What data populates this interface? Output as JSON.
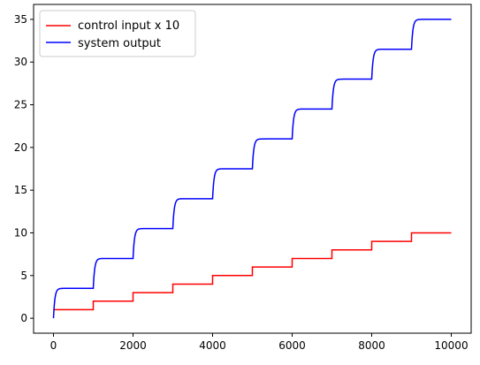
{
  "chart_data": {
    "type": "line",
    "title": "",
    "xlabel": "",
    "ylabel": "",
    "xlim": [
      -500,
      10500
    ],
    "ylim": [
      -1.75,
      36.75
    ],
    "xticks": [
      0,
      2000,
      4000,
      6000,
      8000,
      10000
    ],
    "xtick_labels": [
      "0",
      "2000",
      "4000",
      "6000",
      "8000",
      "10000"
    ],
    "yticks": [
      0,
      5,
      10,
      15,
      20,
      25,
      30,
      35
    ],
    "ytick_labels": [
      "0",
      "5",
      "10",
      "15",
      "20",
      "25",
      "30",
      "35"
    ],
    "grid": false,
    "legend_position": "upper-left",
    "series": [
      {
        "name": "control input x 10",
        "color": "#ff0000",
        "kind": "step",
        "x": [
          0,
          1000,
          2000,
          3000,
          4000,
          5000,
          6000,
          7000,
          8000,
          9000,
          10000
        ],
        "y": [
          1,
          2,
          3,
          4,
          5,
          6,
          7,
          8,
          9,
          10,
          10
        ]
      },
      {
        "name": "system output",
        "color": "#0000ff",
        "kind": "step-response",
        "x": [
          0,
          1000,
          2000,
          3000,
          4000,
          5000,
          6000,
          7000,
          8000,
          9000,
          10000
        ],
        "y": [
          0,
          3.5,
          7,
          10.5,
          14,
          17.5,
          21,
          24.5,
          28,
          31.5,
          35
        ]
      }
    ]
  }
}
